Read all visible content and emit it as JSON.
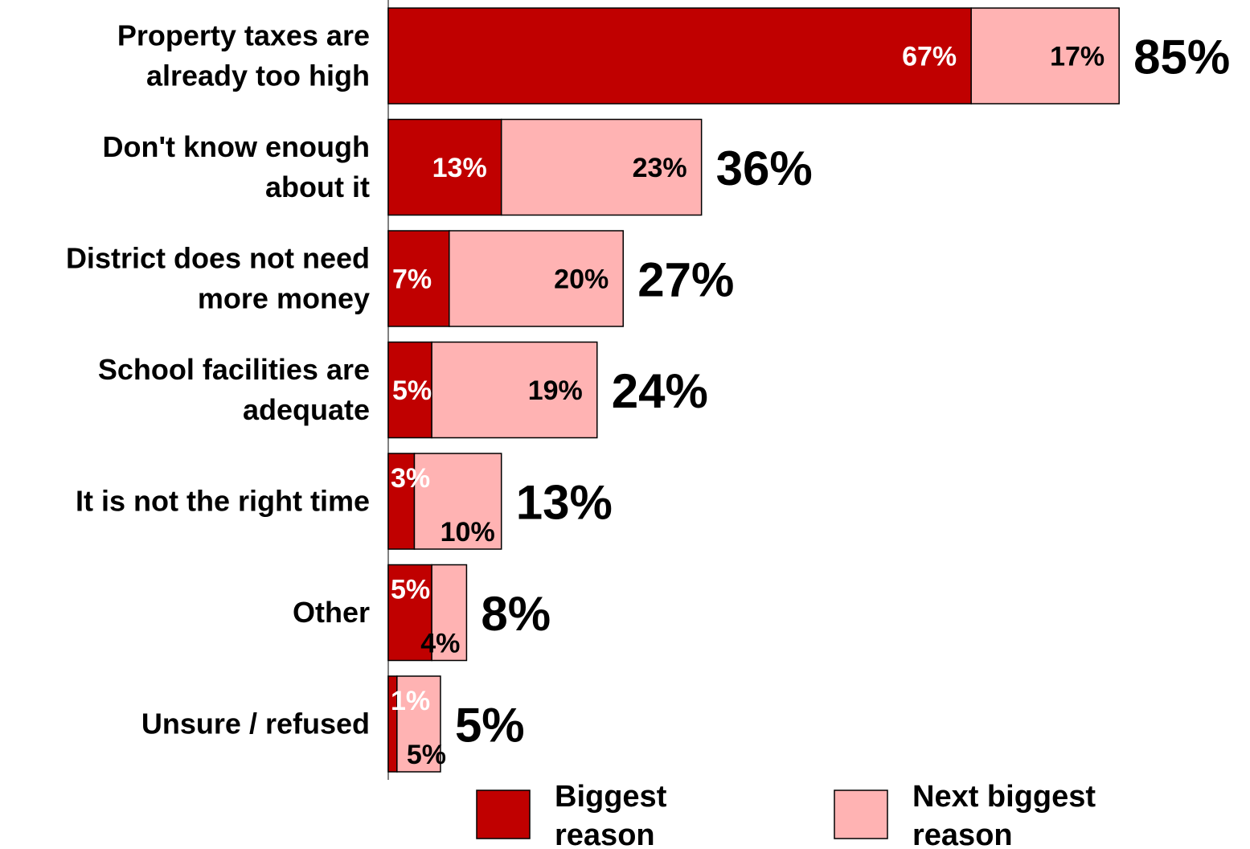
{
  "chart_data": {
    "type": "bar",
    "orientation": "horizontal",
    "stacked": true,
    "categories": [
      [
        "Property taxes are",
        "already too high"
      ],
      [
        "Don't know enough",
        "about it"
      ],
      [
        "District does not need",
        "more money"
      ],
      [
        "School facilities are",
        "adequate"
      ],
      [
        "It is not the right time"
      ],
      [
        "Other"
      ],
      [
        "Unsure / refused"
      ]
    ],
    "series": [
      {
        "name": "Biggest reason",
        "color": "#c00000",
        "label_color": "#ffffff",
        "values": [
          67,
          13,
          7,
          5,
          3,
          5,
          1
        ],
        "labels": [
          "67%",
          "13%",
          "7%",
          "5%",
          "3%",
          "5%",
          "1%"
        ]
      },
      {
        "name": "Next biggest reason",
        "color": "#ffb3b3",
        "label_color": "#000000",
        "values": [
          17,
          23,
          20,
          19,
          10,
          4,
          5
        ],
        "labels": [
          "17%",
          "23%",
          "20%",
          "19%",
          "10%",
          "4%",
          "5%"
        ]
      }
    ],
    "totals": [
      85,
      36,
      27,
      24,
      13,
      8,
      5
    ],
    "total_labels": [
      "85%",
      "36%",
      "27%",
      "24%",
      "13%",
      "8%",
      "5%"
    ],
    "legend": {
      "position": "bottom",
      "items": [
        {
          "lines": [
            "Biggest",
            "reason"
          ],
          "color": "#c00000"
        },
        {
          "lines": [
            "Next biggest",
            "reason"
          ],
          "color": "#ffb3b3"
        }
      ]
    },
    "xlim": [
      0,
      85
    ],
    "grid": false,
    "title": "",
    "xlabel": "",
    "ylabel": ""
  }
}
